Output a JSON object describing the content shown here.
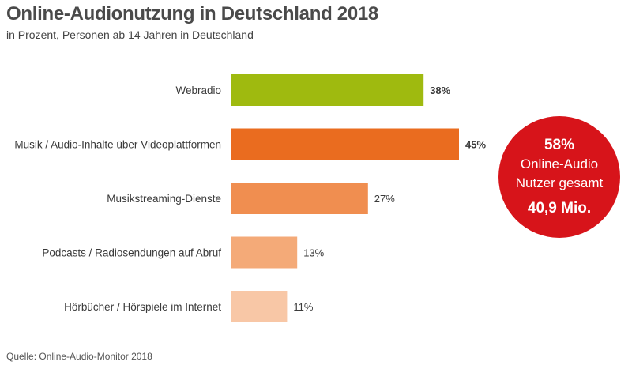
{
  "header": {
    "title": "Online-Audionutzung in Deutschland 2018",
    "subtitle": "in Prozent, Personen ab 14 Jahren in Deutschland"
  },
  "footer": {
    "source": "Quelle: Online-Audio-Monitor 2018"
  },
  "badge": {
    "percent": "58%",
    "line1": "Online-Audio",
    "line2": "Nutzer gesamt",
    "millions": "40,9 Mio.",
    "color": "#d7141a"
  },
  "chart_data": {
    "type": "bar",
    "orientation": "horizontal",
    "title": "Online-Audionutzung in Deutschland 2018",
    "subtitle": "in Prozent, Personen ab 14 Jahren in Deutschland",
    "unit": "%",
    "categories": [
      "Webradio",
      "Musik / Audio-Inhalte über Videoplattformen",
      "Musikstreaming-Dienste",
      "Podcasts / Radiosendungen auf Abruf",
      "Hörbücher / Hörspiele im Internet"
    ],
    "values": [
      38,
      45,
      27,
      13,
      11
    ],
    "value_labels": [
      "38%",
      "45%",
      "27%",
      "13%",
      "11%"
    ],
    "highlight": [
      true,
      true,
      false,
      false,
      false
    ],
    "colors": [
      "#9fba0f",
      "#ea6c1f",
      "#f08e50",
      "#f4aa78",
      "#f8c7a6"
    ],
    "xlim": [
      0,
      45
    ],
    "grid": false,
    "legend": "none"
  }
}
